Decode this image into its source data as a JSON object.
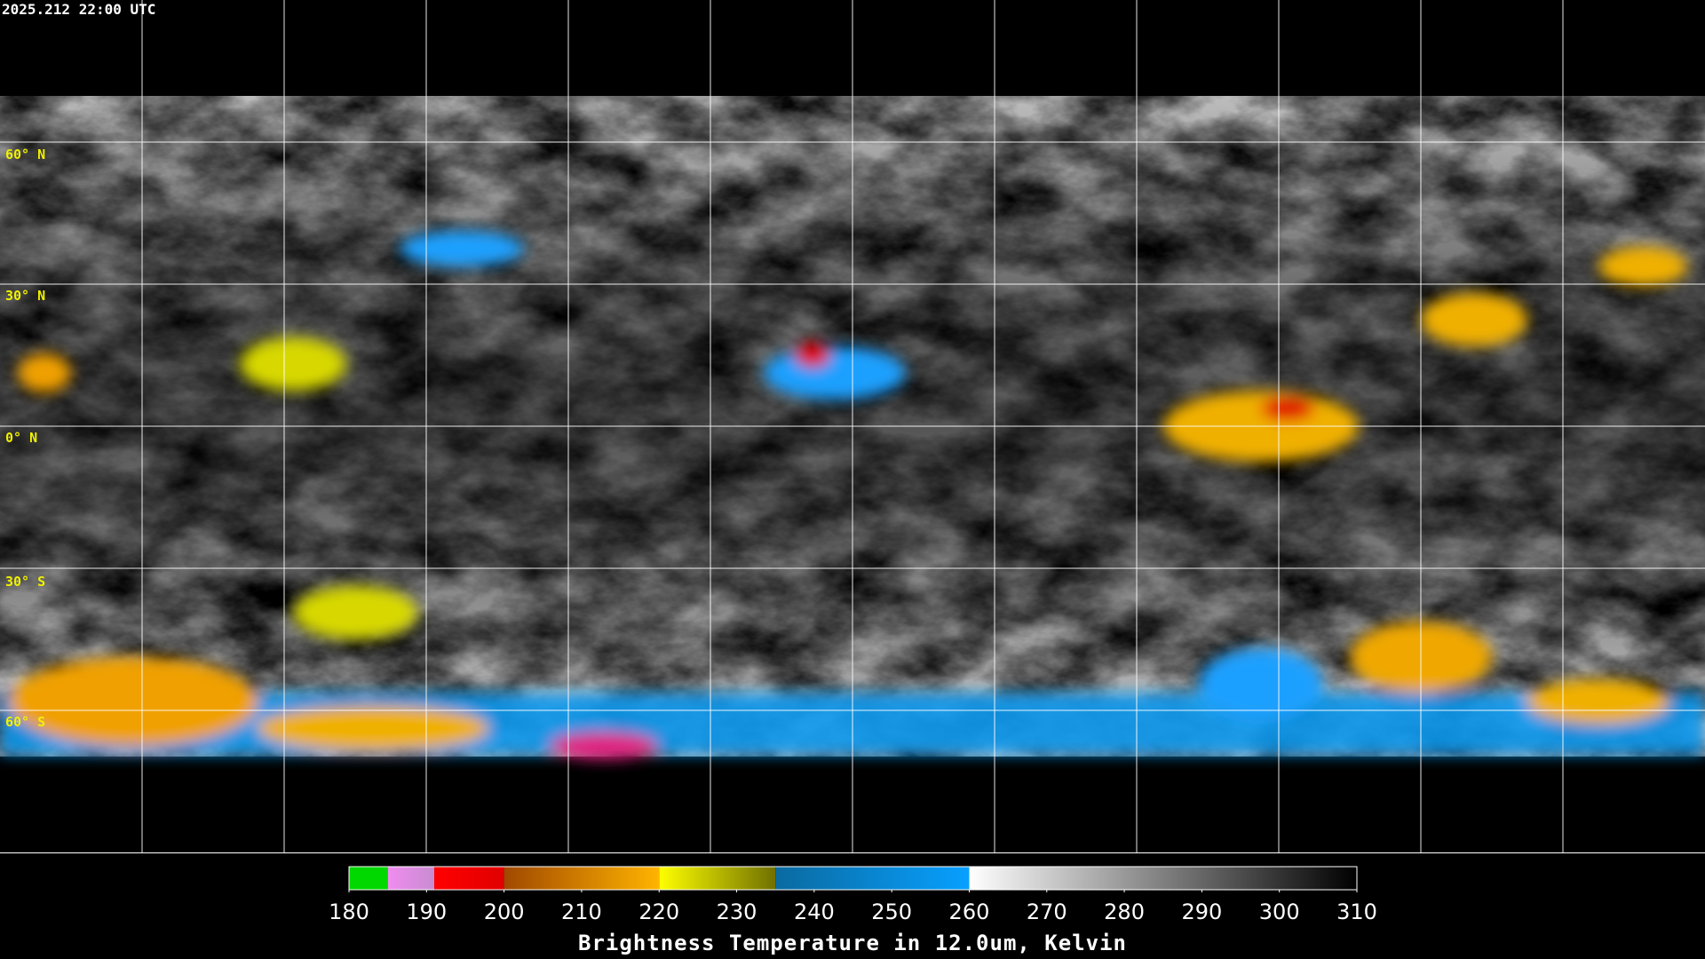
{
  "timestamp": "2025.212 22:00 UTC",
  "lat_labels": [
    "60° N",
    "30° N",
    "0° N",
    "30° S",
    "60° S"
  ],
  "colorbar": {
    "title": "Brightness Temperature in 12.0um, Kelvin",
    "range": [
      180,
      310
    ],
    "ticks": [
      180,
      190,
      200,
      210,
      220,
      230,
      240,
      250,
      260,
      270,
      280,
      290,
      300,
      310
    ],
    "segments": [
      {
        "from": 180,
        "to": 185,
        "colors": [
          "#00d800",
          "#00d800"
        ]
      },
      {
        "from": 185,
        "to": 191,
        "colors": [
          "#f08cf0",
          "#c88cd0"
        ]
      },
      {
        "from": 191,
        "to": 200,
        "colors": [
          "#ff0000",
          "#e00000"
        ]
      },
      {
        "from": 200,
        "to": 220,
        "colors": [
          "#a04800",
          "#ffb400"
        ]
      },
      {
        "from": 220,
        "to": 235,
        "colors": [
          "#ffff00",
          "#707000"
        ]
      },
      {
        "from": 235,
        "to": 260,
        "colors": [
          "#0a6aa0",
          "#08a0ff"
        ]
      },
      {
        "from": 260,
        "to": 310,
        "colors": [
          "#ffffff",
          "#000000"
        ]
      }
    ]
  }
}
